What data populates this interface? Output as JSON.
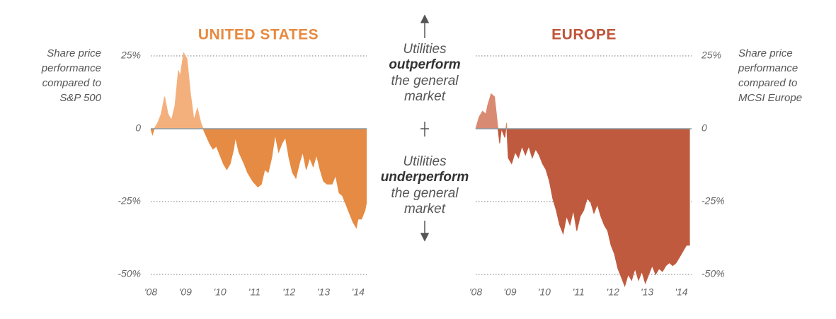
{
  "chart_data": [
    {
      "type": "area",
      "title": "UNITED STATES",
      "title_color": "#e8893f",
      "ylabel": [
        "Share price",
        "performance",
        "compared to",
        "S&P 500"
      ],
      "yaxis_side": "left",
      "xlim": [
        2008,
        2014.25
      ],
      "ylim": [
        -50,
        25
      ],
      "xticks": [
        {
          "value": 2008,
          "label": "'08"
        },
        {
          "value": 2009,
          "label": "'09"
        },
        {
          "value": 2010,
          "label": "'10"
        },
        {
          "value": 2011,
          "label": "'11"
        },
        {
          "value": 2012,
          "label": "'12"
        },
        {
          "value": 2013,
          "label": "'13"
        },
        {
          "value": 2014,
          "label": "'14"
        }
      ],
      "yticks": [
        {
          "value": 25,
          "label": "25%"
        },
        0,
        {
          "value": -25,
          "label": "-25%"
        },
        {
          "value": -50,
          "label": "-50%"
        }
      ],
      "grid": true,
      "color": "#e58b43",
      "positive_color": "#f4b07c",
      "x": [
        2008.0,
        2008.05,
        2008.1,
        2008.2,
        2008.3,
        2008.4,
        2008.5,
        2008.6,
        2008.7,
        2008.8,
        2008.85,
        2008.95,
        2009.05,
        2009.15,
        2009.25,
        2009.35,
        2009.45,
        2009.55,
        2009.7,
        2009.8,
        2009.9,
        2010.0,
        2010.1,
        2010.2,
        2010.3,
        2010.4,
        2010.45,
        2010.55,
        2010.7,
        2010.8,
        2010.95,
        2011.1,
        2011.2,
        2011.3,
        2011.4,
        2011.5,
        2011.6,
        2011.7,
        2011.8,
        2011.9,
        2012.0,
        2012.1,
        2012.2,
        2012.3,
        2012.4,
        2012.5,
        2012.6,
        2012.7,
        2012.8,
        2012.9,
        2013.0,
        2013.1,
        2013.25,
        2013.35,
        2013.45,
        2013.55,
        2013.65,
        2013.75,
        2013.85,
        2013.95,
        2014.0,
        2014.1,
        2014.2,
        2014.25
      ],
      "values": [
        0,
        -2,
        0,
        2,
        5,
        11,
        5,
        3,
        8,
        20,
        18,
        26,
        24,
        12,
        3,
        7,
        2,
        -1,
        -5,
        -7,
        -6,
        -9,
        -12,
        -14,
        -12,
        -7,
        -3,
        -8,
        -12,
        -15,
        -18,
        -20,
        -19,
        -14,
        -15,
        -10,
        -2,
        -8,
        -5,
        -3,
        -10,
        -15,
        -17,
        -12,
        -8,
        -14,
        -10,
        -13,
        -9,
        -14,
        -18,
        -19,
        -19,
        -16,
        -22,
        -23,
        -26,
        -29,
        -32,
        -34,
        -31,
        -31,
        -28,
        -25
      ]
    },
    {
      "type": "area",
      "title": "EUROPE",
      "title_color": "#c0553a",
      "ylabel": [
        "Share price",
        "performance",
        "compared to",
        "MCSI Europe"
      ],
      "yaxis_side": "right",
      "xlim": [
        2008,
        2014.3
      ],
      "ylim": [
        -50,
        25
      ],
      "xticks": [
        {
          "value": 2008,
          "label": "'08"
        },
        {
          "value": 2009,
          "label": "'09"
        },
        {
          "value": 2010,
          "label": "'10"
        },
        {
          "value": 2011,
          "label": "'11"
        },
        {
          "value": 2012,
          "label": "'12"
        },
        {
          "value": 2013,
          "label": "'13"
        },
        {
          "value": 2014,
          "label": "'14"
        }
      ],
      "yticks": [
        {
          "value": 25,
          "label": "25%"
        },
        0,
        {
          "value": -25,
          "label": "-25%"
        },
        {
          "value": -50,
          "label": "-50%"
        }
      ],
      "grid": true,
      "color": "#c05a3e",
      "positive_color": "#d98a72",
      "x": [
        2008.0,
        2008.1,
        2008.2,
        2008.3,
        2008.35,
        2008.45,
        2008.55,
        2008.65,
        2008.7,
        2008.75,
        2008.85,
        2008.9,
        2008.95,
        2009.05,
        2009.15,
        2009.25,
        2009.35,
        2009.45,
        2009.55,
        2009.65,
        2009.75,
        2009.85,
        2009.95,
        2010.05,
        2010.15,
        2010.25,
        2010.35,
        2010.45,
        2010.55,
        2010.65,
        2010.75,
        2010.85,
        2010.95,
        2011.05,
        2011.15,
        2011.25,
        2011.35,
        2011.45,
        2011.55,
        2011.65,
        2011.75,
        2011.85,
        2011.95,
        2012.05,
        2012.15,
        2012.25,
        2012.35,
        2012.45,
        2012.55,
        2012.65,
        2012.75,
        2012.85,
        2012.95,
        2013.05,
        2013.15,
        2013.25,
        2013.35,
        2013.45,
        2013.55,
        2013.65,
        2013.75,
        2013.85,
        2013.95,
        2014.05,
        2014.15,
        2014.25
      ],
      "values": [
        0,
        4,
        6,
        5,
        8,
        12,
        11,
        0,
        -5,
        0,
        -3,
        2,
        -10,
        -12,
        -8,
        -10,
        -6,
        -9,
        -6,
        -10,
        -7,
        -9,
        -12,
        -14,
        -18,
        -24,
        -28,
        -33,
        -36,
        -30,
        -33,
        -28,
        -35,
        -30,
        -28,
        -24,
        -25,
        -29,
        -26,
        -30,
        -33,
        -35,
        -40,
        -43,
        -48,
        -51,
        -54,
        -50,
        -52,
        -48,
        -52,
        -49,
        -53,
        -50,
        -47,
        -50,
        -48,
        -49,
        -47,
        -46,
        -47,
        -46,
        -44,
        -42,
        -40,
        -40
      ]
    }
  ],
  "annotations": {
    "top": [
      "Utilities",
      "outperform",
      "the general",
      "market"
    ],
    "bottom": [
      "Utilities",
      "underperform",
      "the general",
      "market"
    ]
  }
}
